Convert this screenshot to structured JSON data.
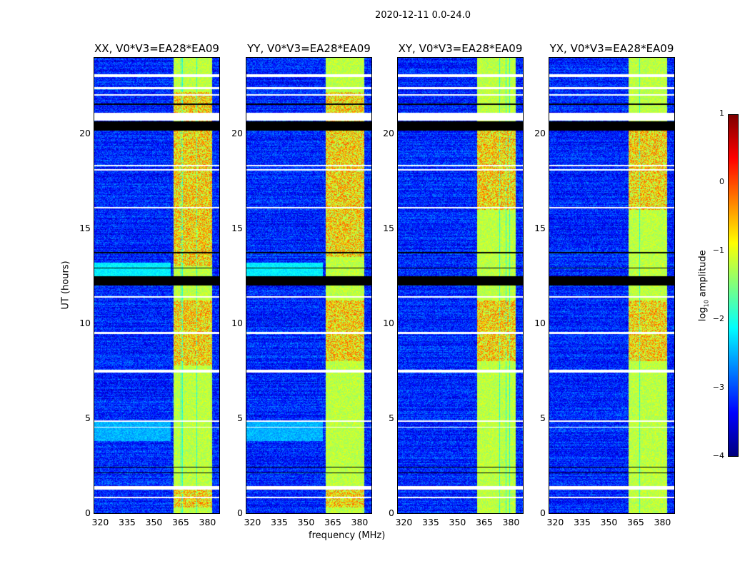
{
  "chart_data": {
    "type": "heatmap",
    "title": "2020-12-11 0.0-24.0",
    "xlabel": "frequency (MHz)",
    "ylabel": "UT (hours)",
    "xlim": [
      317,
      387
    ],
    "ylim": [
      0,
      24
    ],
    "xticks": [
      320,
      335,
      350,
      365,
      380
    ],
    "yticks": [
      0,
      5,
      10,
      15,
      20
    ],
    "panels": [
      {
        "title": "XX, V0*V3=EA28*EA09",
        "strong_band_hours": [
          [
            0.3,
            1.3
          ],
          [
            7.8,
            11.2
          ],
          [
            13.0,
            20.2
          ],
          [
            20.6,
            22.2
          ]
        ]
      },
      {
        "title": "YY, V0*V3=EA28*EA09",
        "strong_band_hours": [
          [
            0.3,
            1.3
          ],
          [
            8.0,
            11.2
          ],
          [
            13.5,
            20.2
          ],
          [
            20.6,
            22.2
          ]
        ]
      },
      {
        "title": "XY, V0*V3=EA28*EA09",
        "strong_band_hours": [
          [
            8.0,
            11.2
          ],
          [
            16.0,
            20.2
          ]
        ]
      },
      {
        "title": "YX, V0*V3=EA28*EA09",
        "strong_band_hours": [
          [
            8.0,
            11.2
          ],
          [
            16.0,
            20.2
          ]
        ]
      }
    ],
    "rfi_band_mhz": [
      361.5,
      383
    ],
    "background_log10": -3.2,
    "band_log10": -1.2,
    "strong_log10": -0.3,
    "flagged_white_hours": [
      [
        23.0,
        23.15
      ],
      [
        22.35,
        22.45
      ],
      [
        22.0,
        22.08
      ],
      [
        20.7,
        21.1
      ],
      [
        18.3,
        18.36
      ],
      [
        18.05,
        18.12
      ],
      [
        16.05,
        16.15
      ],
      [
        11.35,
        11.45
      ],
      [
        9.45,
        9.55
      ],
      [
        7.4,
        7.55
      ],
      [
        4.8,
        4.9
      ],
      [
        4.5,
        4.55
      ],
      [
        1.23,
        1.42
      ],
      [
        0.8,
        0.85
      ]
    ],
    "flagged_black_hours": [
      [
        20.15,
        20.65
      ],
      [
        12.0,
        12.5
      ],
      [
        12.9,
        12.95
      ],
      [
        13.7,
        13.75
      ],
      [
        2.4,
        2.45
      ],
      [
        2.1,
        2.15
      ],
      [
        21.5,
        21.6
      ]
    ],
    "colorbar": {
      "label": "log10 amplitude",
      "label_main": "log",
      "label_sub": "10",
      "label_rest": " amplitude",
      "range": [
        -4,
        1
      ],
      "ticks": [
        "1",
        "0",
        "−1",
        "−2",
        "−3",
        "−4"
      ],
      "tick_values": [
        1,
        0,
        -1,
        -2,
        -3,
        -4
      ],
      "colormap": "jet"
    }
  }
}
